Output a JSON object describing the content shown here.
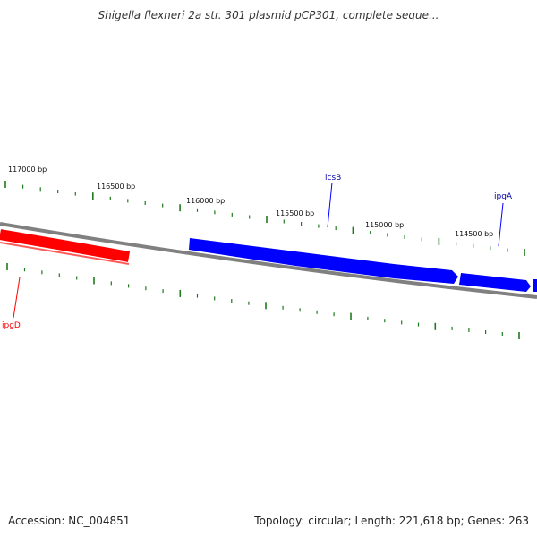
{
  "title": "Shigella flexneri 2a str. 301 plasmid pCP301, complete seque...",
  "footer": {
    "accession": "Accession: NC_004851",
    "summary": "Topology: circular; Length: 221,618 bp; Genes: 263"
  },
  "colors": {
    "backbone": "#808080",
    "tick": "#1f7a1f",
    "reverse_gene": "#ff0000",
    "forward_gene": "#0000ff"
  },
  "bp_labels": [
    {
      "text": "117000 bp"
    },
    {
      "text": "116500 bp"
    },
    {
      "text": "116000 bp"
    },
    {
      "text": "115500 bp"
    },
    {
      "text": "115000 bp"
    },
    {
      "text": "114500 bp"
    }
  ],
  "genes": [
    {
      "name": "ipgD",
      "strand": "reverse"
    },
    {
      "name": "icsB",
      "strand": "forward"
    },
    {
      "name": "ipgA",
      "strand": "forward"
    }
  ]
}
